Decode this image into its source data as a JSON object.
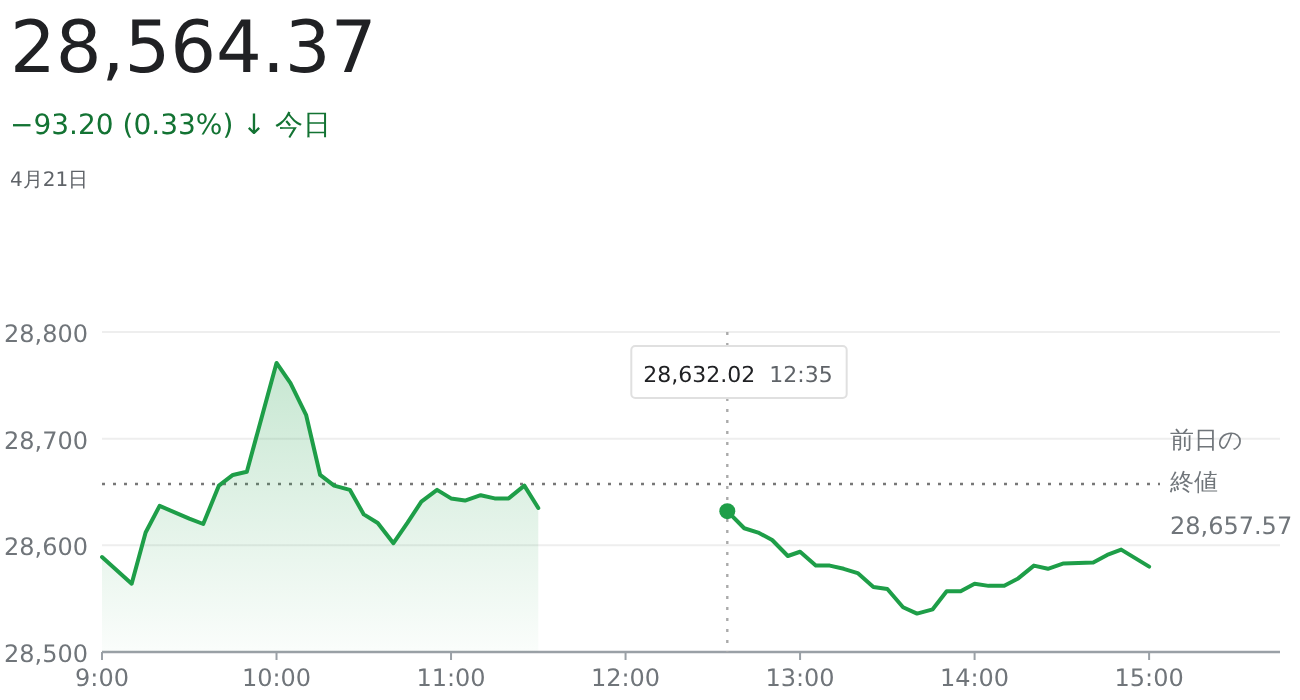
{
  "chart_data": {
    "type": "line",
    "title": "28,564.37",
    "subtitle": "−93.20 (0.33%) ↓ 今日",
    "annotations": [
      "4月21日",
      "28,632.02",
      "12:35",
      "28,657.57"
    ],
    "series": [
      {
        "type": "area",
        "color": "#1e9e48",
        "x": [
          9.0,
          9.17,
          9.25,
          9.33,
          9.5,
          9.58,
          9.67,
          9.75,
          9.83,
          10.0,
          10.08,
          10.17,
          10.25,
          10.33,
          10.42,
          10.5,
          10.58,
          10.67,
          10.75,
          10.83,
          10.92,
          11.0,
          11.08,
          11.17,
          11.25,
          11.33,
          11.42,
          11.5
        ],
        "values": [
          28589,
          28564,
          28612,
          28637,
          28625,
          28620,
          28656,
          28666,
          28669,
          28771,
          28752,
          28722,
          28666,
          28656,
          28652,
          28629,
          28621,
          28602,
          28621,
          28641,
          28652,
          28644,
          28642,
          28647,
          28644,
          28644,
          28656,
          28635
        ]
      },
      {
        "color": "#1e9e48",
        "x": [
          12.583,
          12.68,
          12.76,
          12.84,
          12.93,
          13.0,
          13.09,
          13.17,
          13.25,
          13.33,
          13.42,
          13.5,
          13.59,
          13.67,
          13.76,
          13.84,
          13.92,
          14.0,
          14.08,
          14.17,
          14.25,
          14.34,
          14.42,
          14.51,
          14.68,
          14.76,
          14.84,
          15.0
        ],
        "values": [
          28632,
          28616,
          28612,
          28605,
          28590,
          28594,
          28581,
          28581,
          28578,
          28574,
          28561,
          28559,
          28542,
          28536,
          28540,
          28557,
          28557,
          28564,
          28562,
          28562,
          28569,
          28581,
          28578,
          28583,
          28584,
          28591,
          28596,
          28580
        ]
      },
      {
        "type": "scatter",
        "color": "#1e9e48",
        "marker": "circle",
        "x": [
          12.583
        ],
        "values": [
          28632
        ]
      }
    ],
    "xlim": [
      9,
      15.75
    ],
    "xticks": [
      {
        "value": 9,
        "label": "9:00"
      },
      {
        "value": 10,
        "label": "10:00"
      },
      {
        "value": 11,
        "label": "11:00"
      },
      {
        "value": 12,
        "label": "12:00"
      },
      {
        "value": 13,
        "label": "13:00"
      },
      {
        "value": 14,
        "label": "14:00"
      },
      {
        "value": 15,
        "label": "15:00"
      }
    ],
    "ylim": [
      28500,
      28800
    ],
    "yticks": [
      {
        "value": 28500,
        "label": "28,500"
      },
      {
        "value": 28600,
        "label": "28,600"
      },
      {
        "value": 28700,
        "label": "28,700"
      },
      {
        "value": 28800,
        "label": "28,800"
      }
    ],
    "grid": "y",
    "marker": "none",
    "ref_lines": [
      {
        "axis": "y",
        "value": 28657.57,
        "label": "前日の終値",
        "line_style": "dotted",
        "color": "#777777"
      },
      {
        "axis": "x",
        "value": 12.583,
        "label": null,
        "line_style": "dotted",
        "color": "#aaaaaa"
      }
    ]
  }
}
